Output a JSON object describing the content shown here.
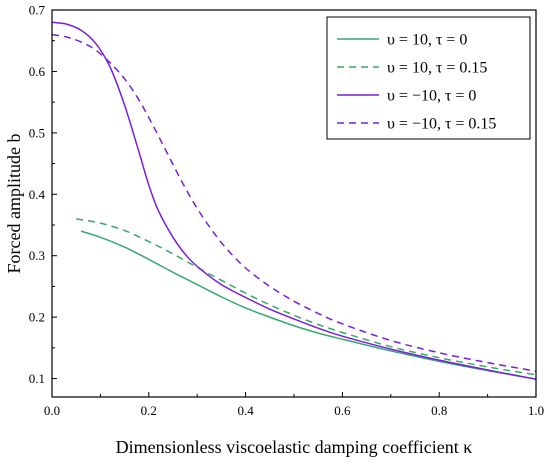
{
  "chart_data": {
    "type": "line",
    "title": "",
    "xlabel": "Dimensionless viscoelastic damping coefficient  κ",
    "ylabel": "Forced amplitude b",
    "xlim": [
      0.0,
      1.0
    ],
    "ylim": [
      0.07,
      0.7
    ],
    "xticks": [
      0.0,
      0.2,
      0.4,
      0.6,
      0.8,
      1.0
    ],
    "xtick_labels": [
      "0.0",
      "0.2",
      "0.4",
      "0.6",
      "0.8",
      "1.0"
    ],
    "yticks": [
      0.1,
      0.2,
      0.3,
      0.4,
      0.5,
      0.6,
      0.7
    ],
    "ytick_labels": [
      "0.1",
      "0.2",
      "0.3",
      "0.4",
      "0.5",
      "0.6",
      "0.7"
    ],
    "grid": false,
    "legend_position": "top-right",
    "series": [
      {
        "name": "υ = 10, τ = 0",
        "color": "#3aa76d",
        "dash": "solid",
        "x": [
          0.06,
          0.1,
          0.15,
          0.2,
          0.25,
          0.3,
          0.35,
          0.4,
          0.45,
          0.5,
          0.55,
          0.6,
          0.7,
          0.8,
          0.9,
          1.0
        ],
        "y": [
          0.34,
          0.33,
          0.314,
          0.294,
          0.273,
          0.253,
          0.233,
          0.215,
          0.2,
          0.186,
          0.174,
          0.164,
          0.145,
          0.128,
          0.113,
          0.099
        ]
      },
      {
        "name": "υ = 10, τ = 0.15",
        "color": "#3aa76d",
        "dash": "dashed",
        "x": [
          0.05,
          0.1,
          0.15,
          0.2,
          0.25,
          0.3,
          0.35,
          0.4,
          0.45,
          0.5,
          0.55,
          0.6,
          0.7,
          0.8,
          0.9,
          1.0
        ],
        "y": [
          0.36,
          0.353,
          0.341,
          0.323,
          0.303,
          0.281,
          0.26,
          0.239,
          0.22,
          0.203,
          0.188,
          0.175,
          0.152,
          0.134,
          0.119,
          0.106
        ]
      },
      {
        "name": "υ = −10, τ = 0",
        "color": "#7b1fd6",
        "dash": "solid",
        "x": [
          0.0,
          0.03,
          0.06,
          0.09,
          0.12,
          0.15,
          0.18,
          0.2,
          0.22,
          0.25,
          0.28,
          0.31,
          0.35,
          0.4,
          0.45,
          0.5,
          0.55,
          0.6,
          0.7,
          0.8,
          0.9,
          1.0
        ],
        "y": [
          0.68,
          0.677,
          0.667,
          0.646,
          0.607,
          0.545,
          0.468,
          0.415,
          0.373,
          0.33,
          0.298,
          0.276,
          0.253,
          0.232,
          0.213,
          0.197,
          0.182,
          0.169,
          0.148,
          0.13,
          0.114,
          0.099
        ]
      },
      {
        "name": "υ = −10, τ = 0.15",
        "color": "#7b1fd6",
        "dash": "dashed",
        "x": [
          0.0,
          0.03,
          0.06,
          0.09,
          0.12,
          0.15,
          0.18,
          0.21,
          0.24,
          0.27,
          0.3,
          0.33,
          0.36,
          0.4,
          0.45,
          0.5,
          0.55,
          0.6,
          0.7,
          0.8,
          0.9,
          1.0
        ],
        "y": [
          0.66,
          0.656,
          0.648,
          0.635,
          0.614,
          0.588,
          0.553,
          0.51,
          0.464,
          0.418,
          0.377,
          0.342,
          0.312,
          0.28,
          0.25,
          0.226,
          0.206,
          0.189,
          0.162,
          0.142,
          0.126,
          0.112
        ]
      }
    ]
  }
}
